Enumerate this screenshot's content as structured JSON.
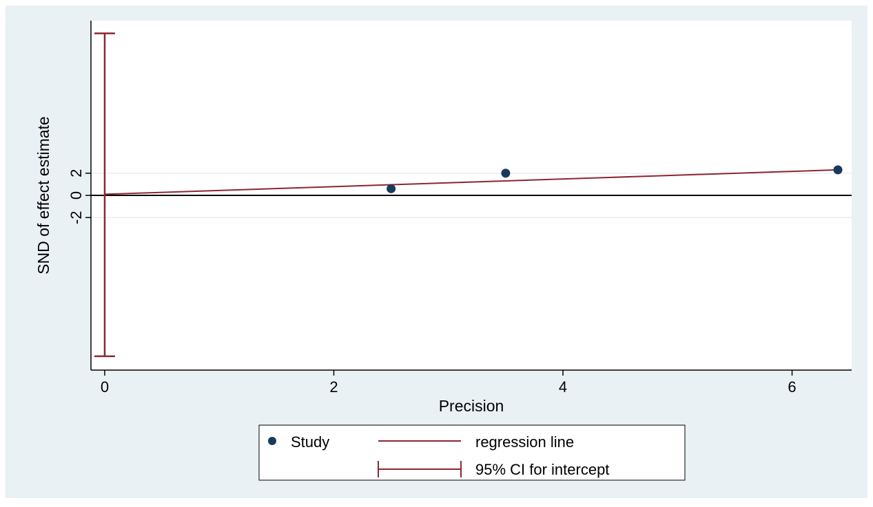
{
  "chart_data": {
    "type": "scatter",
    "title": "",
    "xlabel": "Precision",
    "ylabel": "SND of effect estimate",
    "xlim": [
      -0.12,
      6.52
    ],
    "ylim": [
      -15.75,
      15.75
    ],
    "x_ticks": [
      0,
      2,
      4,
      6
    ],
    "x_tick_labels": [
      "0",
      "2",
      "4",
      "6"
    ],
    "y_ticks": [
      -2,
      0,
      2
    ],
    "y_tick_labels": [
      "-2",
      "0",
      "2"
    ],
    "grid": "horizontal at y ticks",
    "reference_line_y": 0,
    "series": [
      {
        "name": "Study",
        "kind": "points",
        "color": "#1a3a5c",
        "points": [
          {
            "x": 2.5,
            "y": 0.6
          },
          {
            "x": 3.5,
            "y": 2.0
          },
          {
            "x": 6.4,
            "y": 2.3
          }
        ]
      },
      {
        "name": "regression line",
        "kind": "line",
        "color": "#8b2630",
        "points": [
          {
            "x": 0,
            "y": 0.1
          },
          {
            "x": 6.4,
            "y": 2.3
          }
        ]
      },
      {
        "name": "95% CI for intercept",
        "kind": "errorbar",
        "color": "#8b2630",
        "x": 0,
        "low": -14.5,
        "high": 14.6
      }
    ],
    "legend": {
      "placement": "bottom-center",
      "entries": [
        {
          "label": "Study",
          "marker": "dot"
        },
        {
          "label": "regression line",
          "marker": "line"
        },
        {
          "label": "95% CI for intercept",
          "marker": "errorbar"
        }
      ]
    },
    "colors": {
      "background_outer": "#eaf1f4",
      "plot_background": "#ffffff",
      "gridline": "#e8eef0",
      "axis": "#000000"
    }
  }
}
